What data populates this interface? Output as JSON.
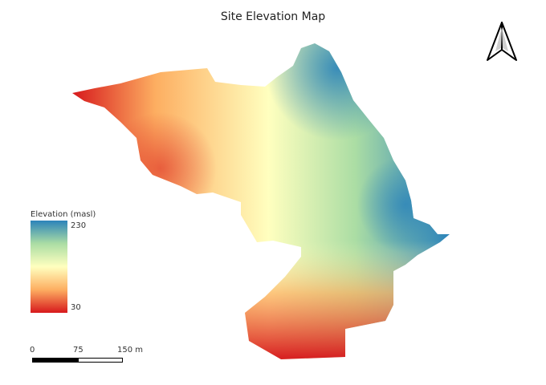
{
  "map": {
    "title": "Site Elevation Map"
  },
  "legend": {
    "title": "Elevation (masl)",
    "max_label": "230",
    "min_label": "30",
    "colors": [
      "#2b83ba",
      "#abdda4",
      "#ffffbf",
      "#fdae61",
      "#d7191c"
    ]
  },
  "scale_bar": {
    "labels": [
      "0",
      "75",
      "150 m"
    ]
  },
  "north_arrow": {
    "icon": "north-arrow-icon"
  }
}
